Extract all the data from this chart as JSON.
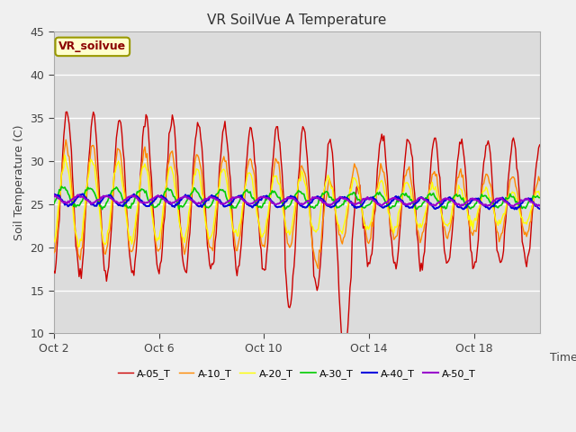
{
  "title": "VR SoilVue A Temperature",
  "ylabel": "Soil Temperature (C)",
  "xlabel": "Time",
  "ylim": [
    10,
    45
  ],
  "xlim": [
    0,
    18.5
  ],
  "background_color": "#f0f0f0",
  "plot_bg_color": "#dcdcdc",
  "legend_label": "VR_soilvue",
  "legend_bg": "#ffffcc",
  "legend_border": "#999900",
  "series": [
    {
      "label": "A-05_T",
      "color": "#cc0000",
      "lw": 1.0
    },
    {
      "label": "A-10_T",
      "color": "#ff8800",
      "lw": 1.0
    },
    {
      "label": "A-20_T",
      "color": "#ffff00",
      "lw": 1.0
    },
    {
      "label": "A-30_T",
      "color": "#00cc00",
      "lw": 1.2
    },
    {
      "label": "A-40_T",
      "color": "#0000dd",
      "lw": 1.5
    },
    {
      "label": "A-50_T",
      "color": "#9900cc",
      "lw": 1.5
    }
  ],
  "xtick_labels": [
    "Oct 2",
    "Oct 6",
    "Oct 10",
    "Oct 14",
    "Oct 18"
  ],
  "xtick_positions": [
    0,
    4,
    8,
    12,
    16
  ],
  "yticks": [
    10,
    15,
    20,
    25,
    30,
    35,
    40,
    45
  ],
  "grid_color": "#ffffff",
  "grid_lw": 1.0,
  "title_fontsize": 11,
  "tick_fontsize": 9,
  "label_fontsize": 9
}
